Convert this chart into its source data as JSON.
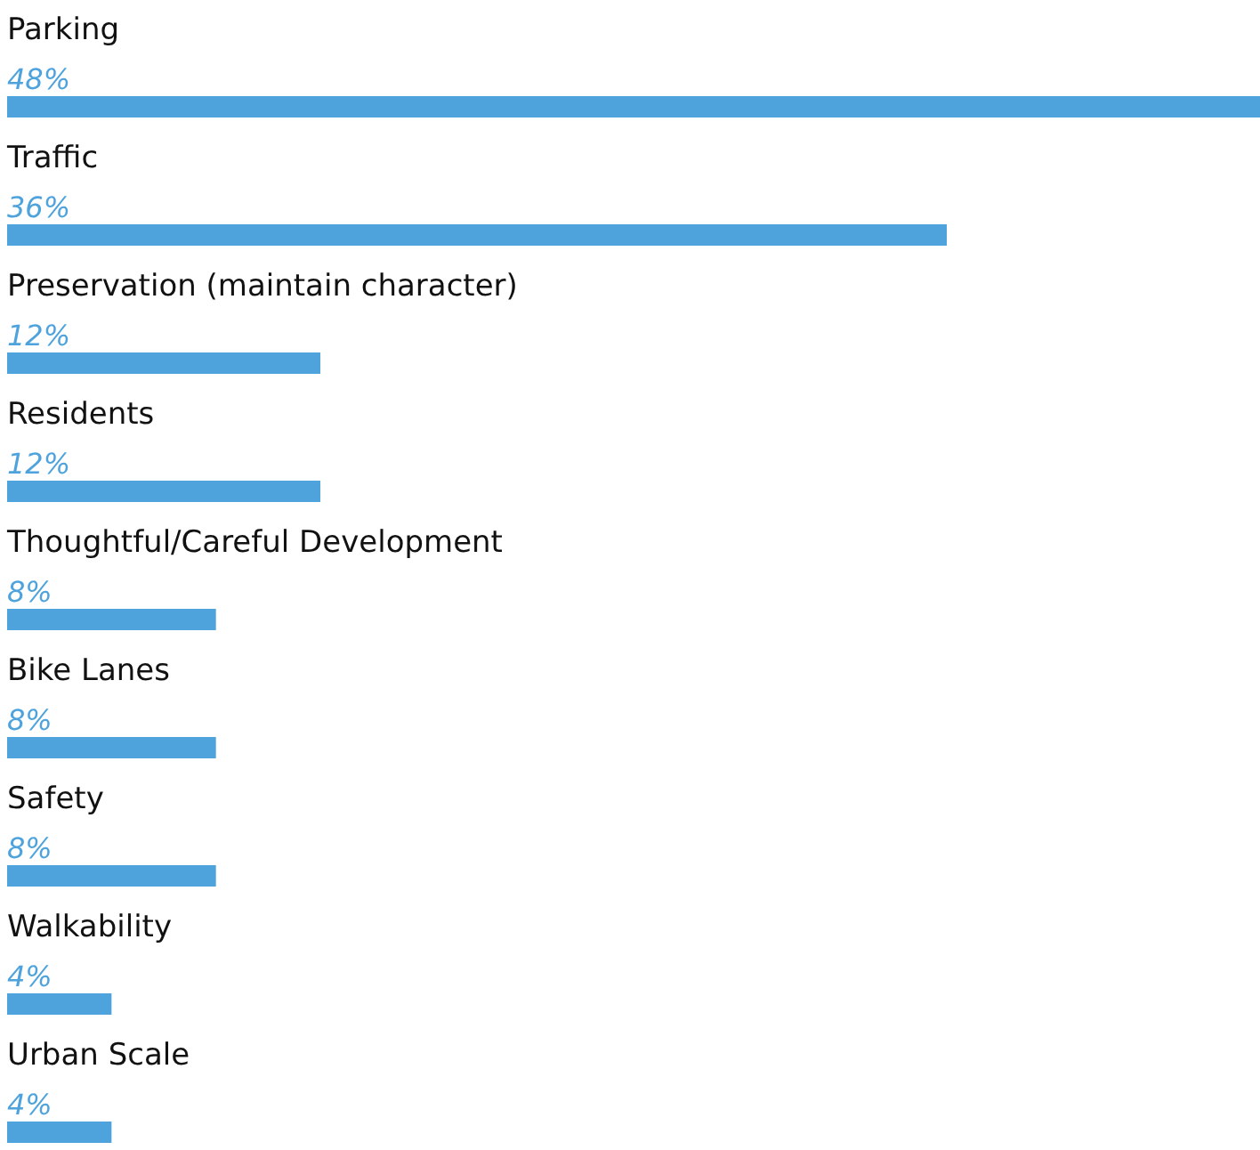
{
  "chart_data": {
    "type": "bar",
    "orientation": "horizontal",
    "categories": [
      "Parking",
      "Traffic",
      "Preservation (maintain character)",
      "Residents",
      "Thoughtful/Careful Development",
      "Bike Lanes",
      "Safety",
      "Walkability",
      "Urban Scale"
    ],
    "values": [
      48,
      36,
      12,
      12,
      8,
      8,
      8,
      4,
      4
    ],
    "value_labels": [
      "48%",
      "36%",
      "12%",
      "12%",
      "8%",
      "8%",
      "8%",
      "4%",
      "4%"
    ],
    "color": "#4ea3dd"
  }
}
